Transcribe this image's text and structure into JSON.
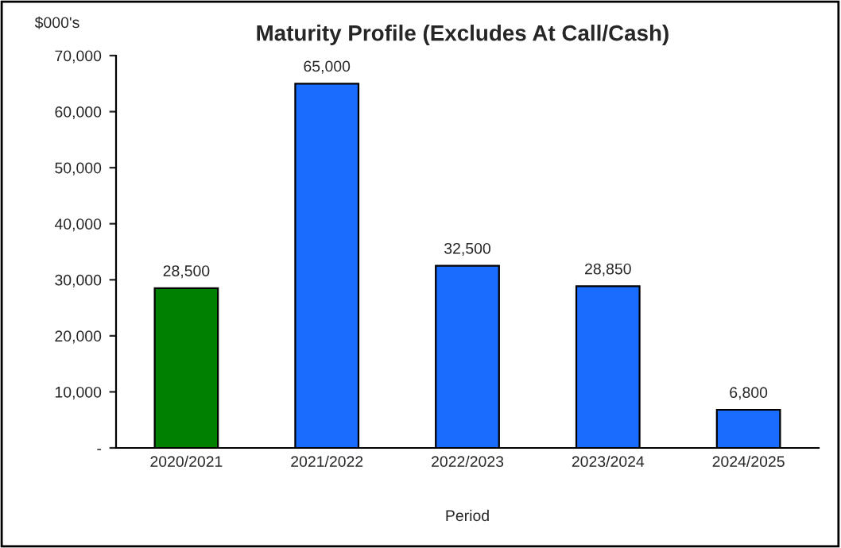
{
  "chart_data": {
    "type": "bar",
    "title": "Maturity Profile (Excludes At Call/Cash)",
    "xlabel": "Period",
    "ylabel": "$000's",
    "categories": [
      "2020/2021",
      "2021/2022",
      "2022/2023",
      "2023/2024",
      "2024/2025"
    ],
    "values": [
      28500,
      65000,
      32500,
      28850,
      6800
    ],
    "colors": [
      "#008000",
      "#1a6cff",
      "#1a6cff",
      "#1a6cff",
      "#1a6cff"
    ],
    "value_labels": [
      "28,500",
      "65,000",
      "32,500",
      "28,850",
      "6,800"
    ],
    "ylim": [
      0,
      70000
    ],
    "yticks": [
      {
        "value": 0,
        "label": "-"
      },
      {
        "value": 10000,
        "label": "10,000"
      },
      {
        "value": 20000,
        "label": "20,000"
      },
      {
        "value": 30000,
        "label": "30,000"
      },
      {
        "value": 40000,
        "label": "40,000"
      },
      {
        "value": 50000,
        "label": "50,000"
      },
      {
        "value": 60000,
        "label": "60,000"
      },
      {
        "value": 70000,
        "label": "70,000"
      }
    ],
    "grid": false,
    "legend": false
  }
}
